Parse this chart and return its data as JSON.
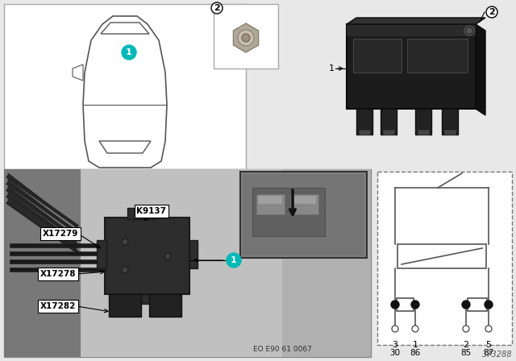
{
  "bg_color": "#e8e8e8",
  "white": "#ffffff",
  "black": "#000000",
  "diagram_number": "373288",
  "eo_text": "EO E90 61 0067",
  "teal": "#00b8b8",
  "pin_labels_top": [
    "3",
    "1",
    "2",
    "5"
  ],
  "pin_labels_bottom": [
    "30",
    "86",
    "85",
    "87"
  ],
  "car_outline_color": "#555555",
  "relay_dark": "#1a1a1a",
  "relay_mid": "#2d2d2d",
  "photo_bg": "#909090",
  "photo_light": "#b8b8b8",
  "photo_dark": "#606060",
  "label_bg": "#ffffff",
  "label_ec": "#000000"
}
